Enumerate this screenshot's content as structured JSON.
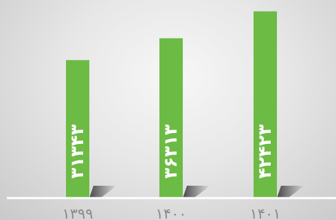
{
  "chart_data": {
    "type": "bar",
    "categories": [
      "۱۳۹۹",
      "۱۴۰۰",
      "۱۴۰۱"
    ],
    "values": [
      31343,
      36313,
      42423
    ],
    "value_labels": [
      "۳۱۳۴۳",
      "۳۶۳۱۳",
      "۴۲۴۲۳"
    ],
    "title": "",
    "xlabel": "",
    "ylabel": "",
    "ylim": [
      0,
      45000
    ],
    "grid": false,
    "legend": "none",
    "colors": {
      "bar": "#6cbb45",
      "label": "#ffffff",
      "axis": "#ffffff",
      "tick_label": "#8a8a8a"
    }
  }
}
